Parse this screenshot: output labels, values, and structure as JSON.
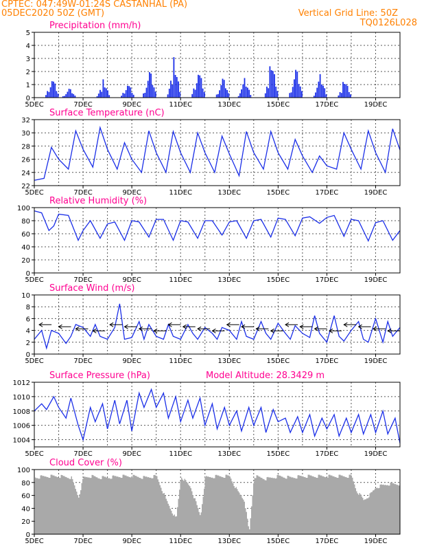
{
  "header": {
    "line1_left": "CPTEC:    047:49W-01:24S    CASTANHAL (PA)",
    "line2_left": "05DEC2020 50Z (GMT)",
    "line1_right": "Vertical Grid Line: 50Z",
    "line2_right": "TQ0126L028",
    "header_color": "#ff8000",
    "title_color": "#ff0090"
  },
  "chart_data": [
    {
      "type": "bar",
      "title": "Precipitation (mm/h)",
      "ylim": [
        0,
        5
      ],
      "yticks": [
        "0",
        "1",
        "2",
        "3",
        "4",
        "5"
      ],
      "xticks": [
        "5DEC",
        "7DEC",
        "9DEC",
        "11DEC",
        "13DEC",
        "15DEC",
        "17DEC",
        "19DEC"
      ],
      "color": "#1a2ee8",
      "events": [
        {
          "day": 5.7,
          "peak": 1.8
        },
        {
          "day": 6.4,
          "peak": 0.8
        },
        {
          "day": 7.8,
          "peak": 1.4
        },
        {
          "day": 8.8,
          "peak": 1.3
        },
        {
          "day": 9.7,
          "peak": 2.3
        },
        {
          "day": 10.7,
          "peak": 3.1
        },
        {
          "day": 11.7,
          "peak": 2.5
        },
        {
          "day": 12.7,
          "peak": 1.7
        },
        {
          "day": 13.6,
          "peak": 1.5
        },
        {
          "day": 14.7,
          "peak": 3.0
        },
        {
          "day": 15.7,
          "peak": 2.5
        },
        {
          "day": 16.7,
          "peak": 1.8
        },
        {
          "day": 17.7,
          "peak": 1.5
        }
      ]
    },
    {
      "type": "line",
      "title": "Surface Temperature (nC)",
      "ylim": [
        22,
        32
      ],
      "yticks": [
        "22",
        "24",
        "26",
        "28",
        "30",
        "32"
      ],
      "xticks": [
        "5DEC",
        "7DEC",
        "9DEC",
        "11DEC",
        "13DEC",
        "15DEC",
        "17DEC",
        "19DEC"
      ],
      "color": "#1a2ee8",
      "x": [
        5.0,
        5.4,
        5.7,
        6.0,
        6.4,
        6.7,
        7.0,
        7.4,
        7.7,
        8.0,
        8.4,
        8.7,
        9.0,
        9.4,
        9.7,
        10.0,
        10.4,
        10.7,
        11.0,
        11.4,
        11.7,
        12.0,
        12.4,
        12.7,
        13.0,
        13.4,
        13.7,
        14.0,
        14.4,
        14.7,
        15.0,
        15.4,
        15.7,
        16.0,
        16.4,
        16.7,
        17.0,
        17.4,
        17.7,
        18.0,
        18.4,
        18.7,
        19.0,
        19.4,
        19.7,
        20.0
      ],
      "values": [
        22.8,
        23.1,
        27.8,
        26.0,
        24.5,
        30.3,
        27.5,
        24.8,
        30.8,
        27.5,
        24.5,
        28.5,
        26.0,
        24.0,
        30.3,
        27.0,
        24.0,
        30.2,
        27.0,
        24.0,
        30.0,
        27.0,
        24.0,
        29.5,
        26.8,
        23.5,
        30.2,
        27.0,
        24.5,
        30.2,
        27.0,
        24.5,
        29.0,
        26.5,
        24.0,
        26.5,
        25.0,
        24.5,
        30.0,
        27.5,
        24.5,
        30.3,
        27.0,
        24.0,
        30.6,
        27.4
      ]
    },
    {
      "type": "line",
      "title": "Relative Humidity (%)",
      "ylim": [
        0,
        100
      ],
      "yticks": [
        "0",
        "20",
        "40",
        "60",
        "80",
        "100"
      ],
      "xticks": [
        "5DEC",
        "7DEC",
        "9DEC",
        "11DEC",
        "13DEC",
        "15DEC",
        "17DEC",
        "19DEC"
      ],
      "color": "#1a2ee8",
      "x": [
        5.0,
        5.3,
        5.6,
        5.8,
        6.0,
        6.4,
        6.8,
        7.0,
        7.3,
        7.7,
        8.0,
        8.3,
        8.7,
        9.0,
        9.3,
        9.7,
        10.0,
        10.3,
        10.7,
        11.0,
        11.3,
        11.7,
        12.0,
        12.3,
        12.7,
        13.0,
        13.3,
        13.7,
        14.0,
        14.3,
        14.7,
        15.0,
        15.3,
        15.7,
        16.0,
        16.3,
        16.7,
        17.0,
        17.3,
        17.7,
        18.0,
        18.3,
        18.7,
        19.0,
        19.3,
        19.7,
        20.0
      ],
      "values": [
        95,
        92,
        65,
        72,
        90,
        88,
        50,
        65,
        80,
        53,
        75,
        78,
        50,
        80,
        78,
        55,
        82,
        82,
        50,
        80,
        78,
        53,
        80,
        80,
        58,
        78,
        80,
        53,
        80,
        82,
        55,
        84,
        82,
        57,
        84,
        86,
        76,
        85,
        88,
        56,
        82,
        80,
        49,
        77,
        80,
        50,
        65
      ]
    },
    {
      "type": "line",
      "title": "Surface Wind (m/s)",
      "ylim": [
        0,
        10
      ],
      "yticks": [
        "0",
        "2",
        "4",
        "6",
        "8",
        "10"
      ],
      "xticks": [
        "5DEC",
        "7DEC",
        "9DEC",
        "11DEC",
        "13DEC",
        "15DEC",
        "17DEC",
        "19DEC"
      ],
      "color": "#1a2ee8",
      "x": [
        5.0,
        5.3,
        5.5,
        5.7,
        6.0,
        6.3,
        6.5,
        6.7,
        7.0,
        7.3,
        7.5,
        7.7,
        8.0,
        8.3,
        8.5,
        8.7,
        9.0,
        9.3,
        9.5,
        9.7,
        10.0,
        10.3,
        10.5,
        10.7,
        11.0,
        11.3,
        11.5,
        11.7,
        12.0,
        12.3,
        12.5,
        12.7,
        13.0,
        13.3,
        13.5,
        13.7,
        14.0,
        14.3,
        14.5,
        14.7,
        15.0,
        15.3,
        15.5,
        15.7,
        16.0,
        16.3,
        16.5,
        16.7,
        17.0,
        17.3,
        17.5,
        17.7,
        18.0,
        18.3,
        18.5,
        18.7,
        19.0,
        19.3,
        19.5,
        19.7,
        20.0
      ],
      "values": [
        2.5,
        4.0,
        1.0,
        4.0,
        3.5,
        1.8,
        3.0,
        5.0,
        4.5,
        3.0,
        5.0,
        3.0,
        2.5,
        4.5,
        8.5,
        2.5,
        2.8,
        5.5,
        2.5,
        5.0,
        3.0,
        2.5,
        5.0,
        3.0,
        2.5,
        5.0,
        3.5,
        2.5,
        4.5,
        3.5,
        2.5,
        4.5,
        4.0,
        2.5,
        5.5,
        3.0,
        2.5,
        5.5,
        3.5,
        2.5,
        5.2,
        3.5,
        2.5,
        4.8,
        3.5,
        2.8,
        6.5,
        3.5,
        2.0,
        6.5,
        3.0,
        2.2,
        4.0,
        5.5,
        2.5,
        2.0,
        6.0,
        2.0,
        5.5,
        3.0,
        4.5
      ],
      "arrows_direction": "west",
      "arrow_days": [
        5.2,
        6.0,
        6.7,
        7.4,
        8.1,
        8.7,
        9.3,
        9.9,
        10.5,
        11.1,
        11.7,
        12.3,
        12.9,
        13.5,
        14.1,
        14.7,
        15.3,
        15.9,
        16.5,
        17.1,
        17.7,
        18.3,
        18.9,
        19.5
      ]
    },
    {
      "type": "line",
      "title": "Surface Pressure (hPa)",
      "annotation": "Model Altitude: 28.3429 m",
      "ylim": [
        1003,
        1012
      ],
      "yticks": [
        "1004",
        "1006",
        "1008",
        "1010",
        "1012"
      ],
      "xticks": [
        "5DEC",
        "7DEC",
        "9DEC",
        "11DEC",
        "13DEC",
        "15DEC",
        "17DEC",
        "19DEC"
      ],
      "color": "#1a2ee8",
      "x": [
        5.0,
        5.3,
        5.5,
        5.8,
        6.0,
        6.3,
        6.5,
        6.8,
        7.0,
        7.3,
        7.5,
        7.8,
        8.0,
        8.3,
        8.5,
        8.8,
        9.0,
        9.3,
        9.5,
        9.8,
        10.0,
        10.3,
        10.5,
        10.8,
        11.0,
        11.3,
        11.5,
        11.8,
        12.0,
        12.3,
        12.5,
        12.8,
        13.0,
        13.3,
        13.5,
        13.8,
        14.0,
        14.3,
        14.5,
        14.8,
        15.0,
        15.3,
        15.5,
        15.8,
        16.0,
        16.3,
        16.5,
        16.8,
        17.0,
        17.3,
        17.5,
        17.8,
        18.0,
        18.3,
        18.5,
        18.8,
        19.0,
        19.3,
        19.5,
        19.8,
        20.0
      ],
      "values": [
        1008.0,
        1009.0,
        1008.2,
        1010.0,
        1008.5,
        1007.0,
        1009.8,
        1006.0,
        1004.0,
        1008.5,
        1006.5,
        1009.0,
        1005.5,
        1009.5,
        1006.2,
        1009.5,
        1005.2,
        1010.5,
        1008.5,
        1011.0,
        1008.5,
        1010.5,
        1007.0,
        1010.0,
        1006.5,
        1009.5,
        1007.0,
        1009.8,
        1006.0,
        1009.0,
        1005.5,
        1008.5,
        1006.0,
        1008.0,
        1005.2,
        1008.5,
        1006.0,
        1008.5,
        1005.0,
        1008.2,
        1006.5,
        1007.0,
        1005.0,
        1007.2,
        1005.0,
        1007.5,
        1004.5,
        1007.0,
        1005.5,
        1007.5,
        1004.5,
        1007.0,
        1005.0,
        1007.5,
        1004.8,
        1007.5,
        1005.0,
        1008.0,
        1004.8,
        1007.0,
        1003.5
      ]
    },
    {
      "type": "bar",
      "title": "Cloud Cover (%)",
      "ylim": [
        0,
        100
      ],
      "yticks": [
        "0",
        "20",
        "40",
        "60",
        "80",
        "100"
      ],
      "xticks": [
        "5DEC",
        "7DEC",
        "9DEC",
        "11DEC",
        "13DEC",
        "15DEC",
        "17DEC",
        "19DEC"
      ],
      "color": "#a9a9a9",
      "x": [
        5.0,
        5.5,
        6.0,
        6.5,
        6.8,
        7.0,
        7.3,
        7.6,
        8.0,
        8.5,
        9.0,
        9.5,
        10.0,
        10.4,
        10.8,
        11.0,
        11.4,
        11.8,
        12.0,
        12.5,
        13.0,
        13.3,
        13.6,
        13.8,
        14.0,
        14.5,
        15.0,
        15.5,
        16.0,
        16.5,
        17.0,
        17.5,
        18.0,
        18.2,
        18.5,
        18.8,
        19.0,
        19.5,
        20.0
      ],
      "values": [
        90,
        92,
        92,
        90,
        60,
        90,
        92,
        90,
        90,
        92,
        92,
        90,
        92,
        55,
        25,
        92,
        75,
        30,
        90,
        92,
        92,
        70,
        55,
        5,
        92,
        88,
        92,
        90,
        92,
        92,
        92,
        92,
        92,
        70,
        55,
        65,
        75,
        80,
        80
      ]
    }
  ]
}
